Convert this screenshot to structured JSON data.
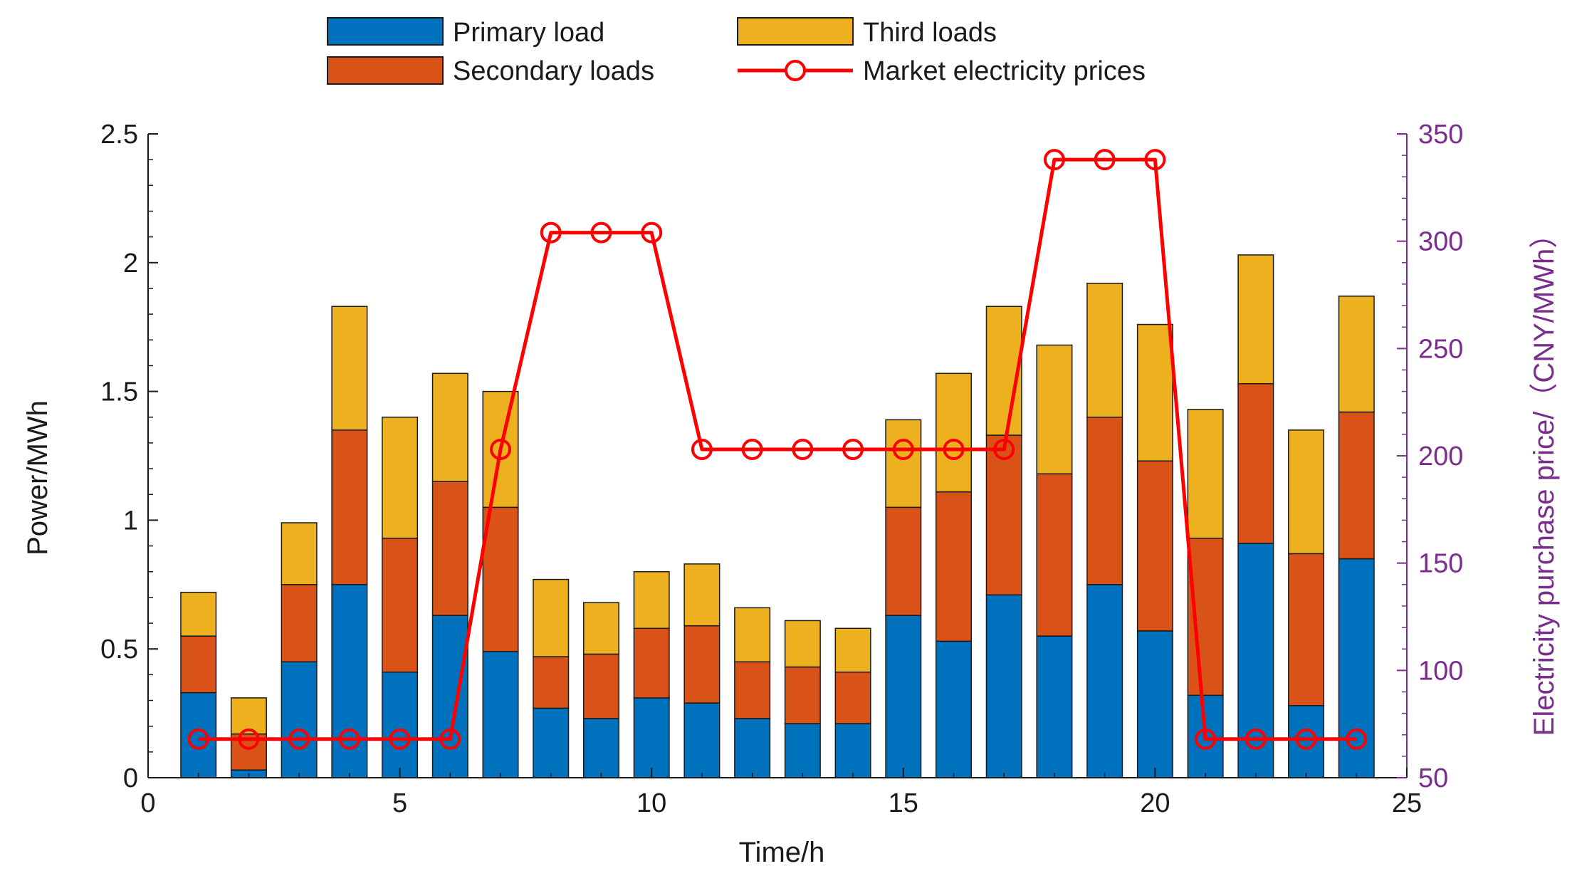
{
  "chart_data": {
    "type": "bar",
    "stacked": true,
    "x": [
      1,
      2,
      3,
      4,
      5,
      6,
      7,
      8,
      9,
      10,
      11,
      12,
      13,
      14,
      15,
      16,
      17,
      18,
      19,
      20,
      21,
      22,
      23,
      24
    ],
    "xlabel": "Time/h",
    "ylabel": "Power/MWh",
    "y2label": "Electricity purchase price/（CNY/MWh）",
    "xlim": [
      0,
      25
    ],
    "ylim": [
      0,
      2.5
    ],
    "y2lim": [
      50,
      350
    ],
    "xticks": [
      "0",
      "5",
      "10",
      "15",
      "20",
      "25"
    ],
    "yticks": [
      "0",
      "0.5",
      "1",
      "1.5",
      "2",
      "2.5"
    ],
    "y2ticks": [
      "50",
      "100",
      "150",
      "200",
      "250",
      "300",
      "350"
    ],
    "grid": false,
    "legend_position": "top",
    "colors": {
      "primary": "#0072BD",
      "secondary": "#D95319",
      "third": "#EDB120",
      "price": "#FF0000",
      "right_axis": "#7B2D8E"
    },
    "series": [
      {
        "name": "Primary load",
        "values": [
          0.33,
          0.03,
          0.45,
          0.75,
          0.41,
          0.63,
          0.49,
          0.27,
          0.23,
          0.31,
          0.29,
          0.23,
          0.21,
          0.21,
          0.63,
          0.53,
          0.71,
          0.55,
          0.75,
          0.57,
          0.32,
          0.91,
          0.28,
          0.85
        ]
      },
      {
        "name": "Secondary loads",
        "values": [
          0.22,
          0.14,
          0.3,
          0.6,
          0.52,
          0.52,
          0.56,
          0.2,
          0.25,
          0.27,
          0.3,
          0.22,
          0.22,
          0.2,
          0.42,
          0.58,
          0.62,
          0.63,
          0.65,
          0.66,
          0.61,
          0.62,
          0.59,
          0.57
        ]
      },
      {
        "name": "Third loads",
        "values": [
          0.17,
          0.14,
          0.24,
          0.48,
          0.47,
          0.42,
          0.45,
          0.3,
          0.2,
          0.22,
          0.24,
          0.21,
          0.18,
          0.17,
          0.34,
          0.46,
          0.5,
          0.5,
          0.52,
          0.53,
          0.5,
          0.5,
          0.48,
          0.45
        ]
      },
      {
        "name": "Market electricity prices",
        "axis": "right",
        "type": "line",
        "values": [
          68,
          68,
          68,
          68,
          68,
          68,
          203,
          304,
          304,
          304,
          203,
          203,
          203,
          203,
          203,
          203,
          203,
          338,
          338,
          338,
          68,
          68,
          68,
          68
        ]
      }
    ]
  }
}
